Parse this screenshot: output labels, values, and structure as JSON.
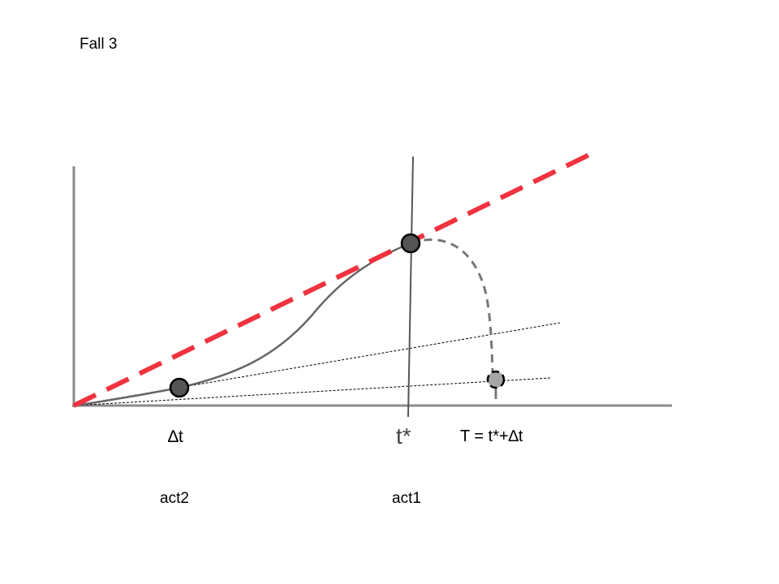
{
  "title": "Fall 3",
  "labels": {
    "delta_t": "∆t",
    "t_star": "t*",
    "T_formula": "T = t*+∆t",
    "act2": "act2",
    "act1": "act1"
  },
  "colors": {
    "red_dashed_line": "#f0333f",
    "curve": "#666666",
    "dashed_drop": "#777777",
    "marker_dark": "#555555",
    "marker_light": "#a6a6a6",
    "axes": "#888888",
    "vertical_line": "#555555"
  }
}
